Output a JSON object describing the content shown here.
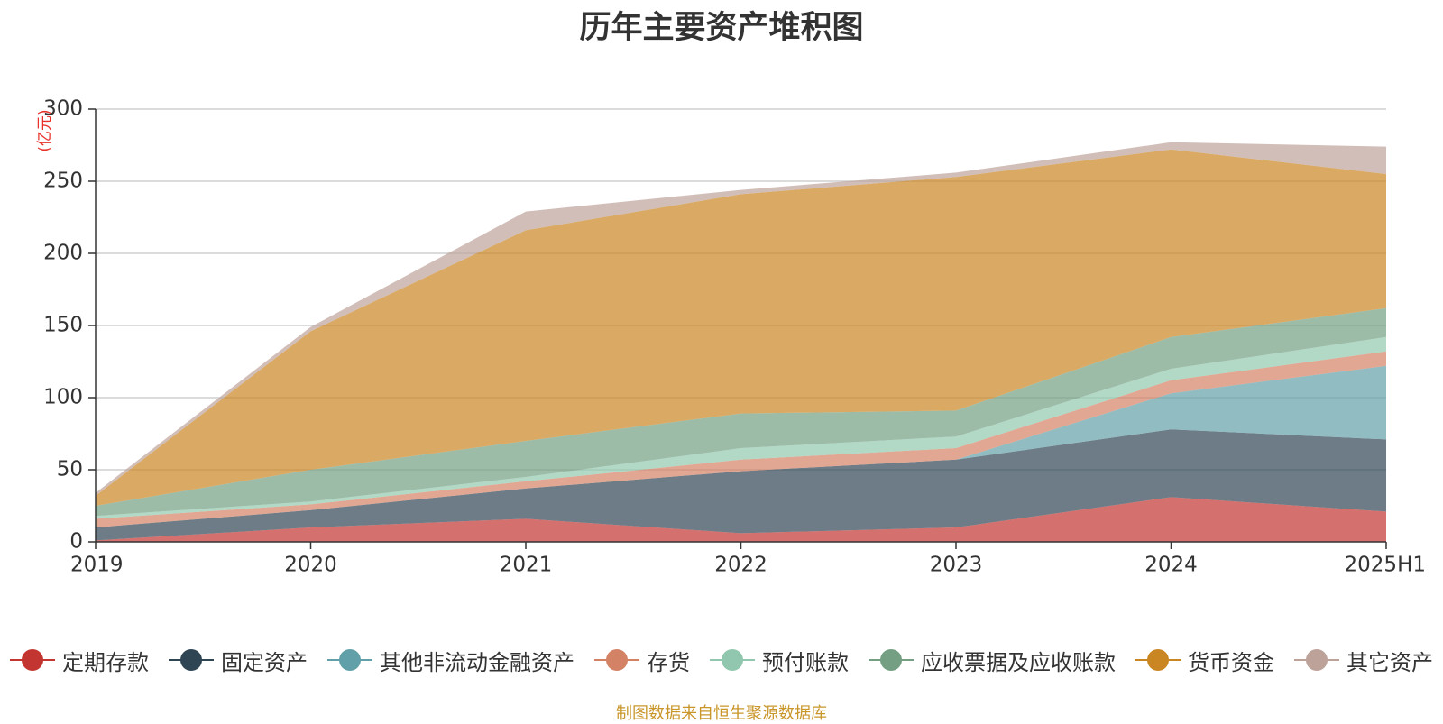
{
  "chart_data": {
    "type": "area",
    "stacked": true,
    "title": "历年主要资产堆积图",
    "ylabel": "(亿元)",
    "xlabel": "",
    "categories": [
      "2019",
      "2020",
      "2021",
      "2022",
      "2023",
      "2024",
      "2025H1"
    ],
    "ylim": [
      0,
      300
    ],
    "yticks": [
      0,
      50,
      100,
      150,
      200,
      250,
      300
    ],
    "grid": true,
    "legend_position": "bottom",
    "series": [
      {
        "name": "定期存款",
        "color": "#c23531",
        "values": [
          1,
          10,
          16,
          6,
          10,
          31,
          21
        ]
      },
      {
        "name": "固定资产",
        "color": "#2f4554",
        "values": [
          9,
          12,
          21,
          43,
          47,
          47,
          50
        ]
      },
      {
        "name": "其他非流动金融资产",
        "color": "#61a0a8",
        "values": [
          0,
          0,
          0,
          0,
          0,
          25,
          51
        ]
      },
      {
        "name": "存货",
        "color": "#d48265",
        "values": [
          6,
          4,
          5,
          8,
          8,
          9,
          10
        ]
      },
      {
        "name": "预付账款",
        "color": "#91c7ae",
        "values": [
          2,
          2,
          3,
          8,
          8,
          8,
          10
        ]
      },
      {
        "name": "应收票据及应收账款",
        "color": "#749f83",
        "values": [
          7,
          22,
          25,
          24,
          18,
          22,
          20
        ]
      },
      {
        "name": "货币资金",
        "color": "#ca8622",
        "values": [
          7,
          96,
          146,
          152,
          162,
          130,
          93
        ]
      },
      {
        "name": "其它资产",
        "color": "#bda29a",
        "values": [
          2,
          3,
          13,
          3,
          3,
          5,
          19
        ]
      }
    ]
  },
  "source_note": "制图数据来自恒生聚源数据库"
}
